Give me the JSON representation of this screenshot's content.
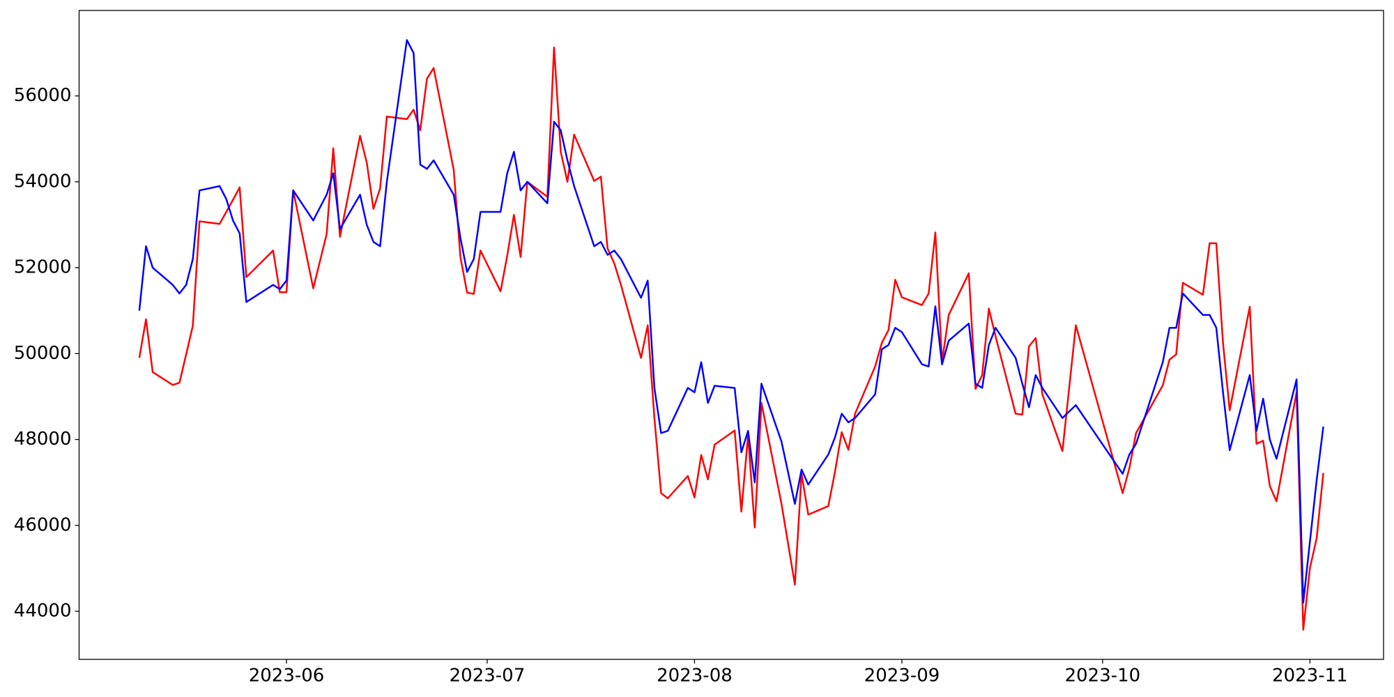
{
  "chart_data": {
    "type": "line",
    "x": [
      "2023-05-10",
      "2023-05-11",
      "2023-05-12",
      "2023-05-15",
      "2023-05-16",
      "2023-05-17",
      "2023-05-18",
      "2023-05-19",
      "2023-05-22",
      "2023-05-23",
      "2023-05-24",
      "2023-05-25",
      "2023-05-26",
      "2023-05-30",
      "2023-05-31",
      "2023-06-01",
      "2023-06-02",
      "2023-06-05",
      "2023-06-07",
      "2023-06-08",
      "2023-06-09",
      "2023-06-12",
      "2023-06-13",
      "2023-06-14",
      "2023-06-15",
      "2023-06-16",
      "2023-06-19",
      "2023-06-20",
      "2023-06-21",
      "2023-06-22",
      "2023-06-23",
      "2023-06-26",
      "2023-06-27",
      "2023-06-28",
      "2023-06-29",
      "2023-06-30",
      "2023-07-03",
      "2023-07-04",
      "2023-07-05",
      "2023-07-06",
      "2023-07-07",
      "2023-07-10",
      "2023-07-11",
      "2023-07-12",
      "2023-07-13",
      "2023-07-14",
      "2023-07-17",
      "2023-07-18",
      "2023-07-19",
      "2023-07-20",
      "2023-07-21",
      "2023-07-24",
      "2023-07-25",
      "2023-07-26",
      "2023-07-27",
      "2023-07-28",
      "2023-07-31",
      "2023-08-01",
      "2023-08-02",
      "2023-08-03",
      "2023-08-04",
      "2023-08-07",
      "2023-08-08",
      "2023-08-09",
      "2023-08-10",
      "2023-08-11",
      "2023-08-14",
      "2023-08-16",
      "2023-08-17",
      "2023-08-18",
      "2023-08-21",
      "2023-08-22",
      "2023-08-23",
      "2023-08-24",
      "2023-08-25",
      "2023-08-28",
      "2023-08-29",
      "2023-08-30",
      "2023-08-31",
      "2023-09-01",
      "2023-09-04",
      "2023-09-05",
      "2023-09-06",
      "2023-09-07",
      "2023-09-08",
      "2023-09-11",
      "2023-09-12",
      "2023-09-13",
      "2023-09-14",
      "2023-09-15",
      "2023-09-18",
      "2023-09-19",
      "2023-09-20",
      "2023-09-21",
      "2023-09-22",
      "2023-09-25",
      "2023-09-27",
      "2023-10-04",
      "2023-10-05",
      "2023-10-06",
      "2023-10-10",
      "2023-10-11",
      "2023-10-12",
      "2023-10-13",
      "2023-10-16",
      "2023-10-17",
      "2023-10-18",
      "2023-10-19",
      "2023-10-20",
      "2023-10-23",
      "2023-10-24",
      "2023-10-25",
      "2023-10-26",
      "2023-10-27",
      "2023-10-30",
      "2023-10-31",
      "2023-11-01",
      "2023-11-02",
      "2023-11-03"
    ],
    "series": [
      {
        "color": "#ff0000",
        "values": [
          49900,
          50800,
          49570,
          49270,
          49320,
          49980,
          50650,
          53080,
          53020,
          53300,
          53580,
          53870,
          51780,
          52400,
          51430,
          51430,
          53800,
          51520,
          52780,
          54780,
          52720,
          55070,
          54450,
          53370,
          53850,
          55520,
          55460,
          55680,
          55200,
          56400,
          56650,
          54280,
          52250,
          51420,
          51390,
          52400,
          51450,
          52280,
          53230,
          52250,
          54000,
          53650,
          57130,
          54700,
          54000,
          55100,
          54020,
          54120,
          52450,
          52100,
          51600,
          49900,
          50660,
          48500,
          46750,
          46630,
          47150,
          46650,
          47640,
          47070,
          47880,
          48210,
          46320,
          48100,
          45950,
          48850,
          46500,
          44620,
          47200,
          46250,
          46450,
          47250,
          48170,
          47760,
          48600,
          49700,
          50250,
          50550,
          51720,
          51310,
          51130,
          51400,
          52820,
          49810,
          50900,
          51870,
          49180,
          49500,
          51050,
          50400,
          48600,
          48580,
          50170,
          50360,
          49050,
          47730,
          50660,
          46750,
          47330,
          48150,
          49260,
          49860,
          49980,
          51650,
          51370,
          52570,
          52570,
          50250,
          48680,
          51090,
          47900,
          47970,
          46920,
          46560,
          49100,
          43570,
          45010,
          45700,
          47220
        ]
      },
      {
        "color": "#0000ff",
        "values": [
          51000,
          52500,
          52000,
          51600,
          51400,
          51600,
          52200,
          53800,
          53900,
          53600,
          53100,
          52800,
          51200,
          51600,
          51500,
          51700,
          53800,
          53100,
          53700,
          54200,
          52900,
          53700,
          53000,
          52600,
          52500,
          54000,
          57300,
          57000,
          54400,
          54300,
          54500,
          53700,
          52700,
          51900,
          52200,
          53300,
          53300,
          54200,
          54700,
          53800,
          54000,
          53500,
          55400,
          55200,
          54500,
          53900,
          52500,
          52600,
          52300,
          52400,
          52200,
          51300,
          51700,
          49200,
          48150,
          48200,
          49200,
          49100,
          49800,
          48850,
          49250,
          49200,
          47700,
          48200,
          47000,
          49300,
          47950,
          46500,
          47300,
          46950,
          47650,
          48050,
          48600,
          48400,
          48500,
          49050,
          50100,
          50200,
          50600,
          50500,
          49750,
          49700,
          51100,
          49750,
          50300,
          50700,
          49300,
          49200,
          50200,
          50600,
          49900,
          49300,
          48750,
          49500,
          49200,
          48500,
          48800,
          47200,
          47650,
          47900,
          49800,
          50600,
          50600,
          51400,
          50900,
          50900,
          50600,
          49100,
          47750,
          49500,
          48200,
          48950,
          48000,
          47550,
          49400,
          44200,
          45630,
          47050,
          48300
        ]
      }
    ],
    "xlim": [
      "2023-05-01",
      "2023-11-12"
    ],
    "xticks": [
      {
        "value": "2023-06-01",
        "label": "2023-06"
      },
      {
        "value": "2023-07-01",
        "label": "2023-07"
      },
      {
        "value": "2023-08-01",
        "label": "2023-08"
      },
      {
        "value": "2023-09-01",
        "label": "2023-09"
      },
      {
        "value": "2023-10-01",
        "label": "2023-10"
      },
      {
        "value": "2023-11-01",
        "label": "2023-11"
      }
    ],
    "ylim": [
      42880,
      57990
    ],
    "yticks": [
      44000,
      46000,
      48000,
      50000,
      52000,
      54000,
      56000
    ],
    "grid": false
  }
}
